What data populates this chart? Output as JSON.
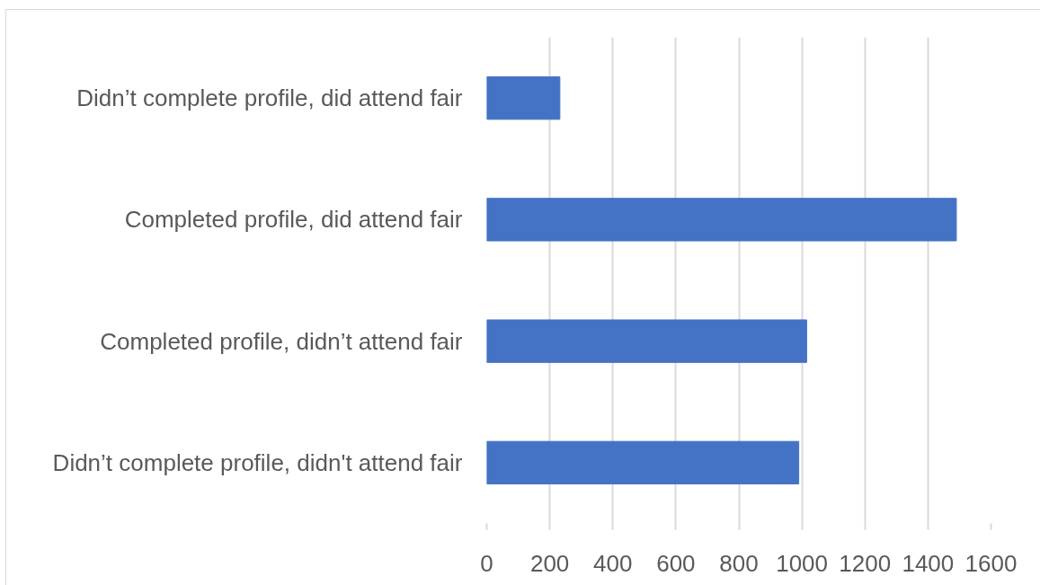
{
  "chart_data": {
    "type": "bar",
    "orientation": "horizontal",
    "categories": [
      "Didn’t complete profile, did attend fair",
      "Completed profile, did attend fair",
      "Completed profile, didn’t attend fair",
      "Didn’t complete profile, didn't attend fair"
    ],
    "values": [
      232,
      1490,
      1015,
      990
    ],
    "color": "#4472c4",
    "xlim": [
      0,
      1600
    ],
    "xticks": [
      0,
      200,
      400,
      600,
      800,
      1000,
      1200,
      1400,
      1600
    ],
    "grid": "x"
  }
}
